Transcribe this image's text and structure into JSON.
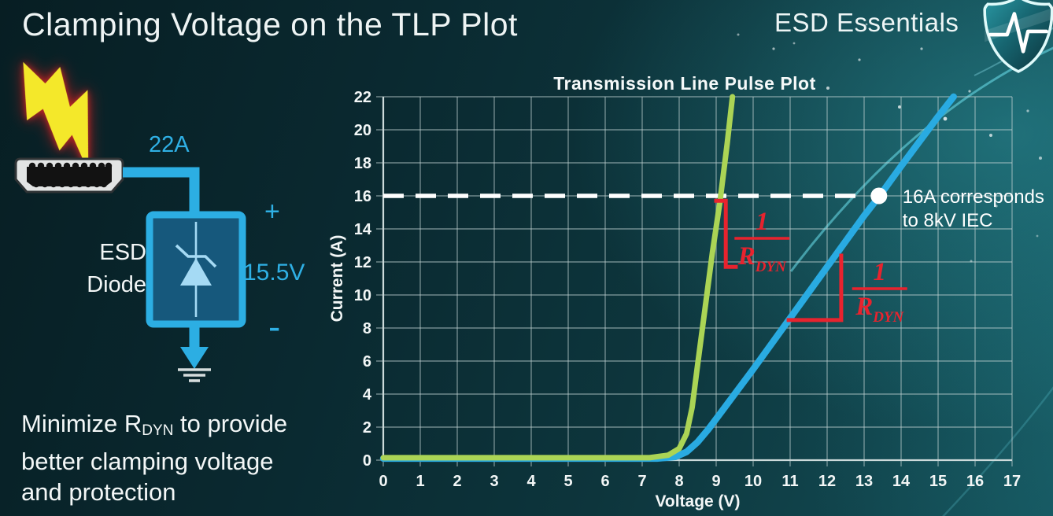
{
  "slide": {
    "title": "Clamping Voltage on the TLP Plot",
    "brand": "ESD Essentials",
    "note": {
      "line1_pre": "Minimize R",
      "line1_sub": "DYN",
      "line1_post": " to provide",
      "line2": "better clamping voltage",
      "line3": "and protection"
    }
  },
  "diagram": {
    "surge_current_label": "22A",
    "device_label_line1": "ESD",
    "device_label_line2": "Diode",
    "plus_label": "+",
    "clamp_voltage_label": "15.5V",
    "minus_label": "-",
    "icons": {
      "lightning": "lightning-bolt",
      "connector": "hdmi-port",
      "diode": "zener-diode",
      "ground": "earth-ground",
      "brand_logo": "shield-with-pulse"
    },
    "colors": {
      "wire": "#2caee3",
      "box_fill": "#16587c",
      "diode_symbol": "#a5daf4",
      "lightning": "#f4e82a",
      "lightning_glow": "#b72025"
    }
  },
  "chart_data": {
    "type": "line",
    "title": "Transmission Line Pulse Plot",
    "xlabel": "Voltage (V)",
    "ylabel": "Current (A)",
    "xlim": [
      0,
      17
    ],
    "ylim": [
      0,
      22
    ],
    "x_ticks": [
      0,
      1,
      2,
      3,
      4,
      5,
      6,
      7,
      8,
      9,
      10,
      11,
      12,
      13,
      14,
      15,
      16,
      17
    ],
    "y_ticks": [
      0,
      2,
      4,
      6,
      8,
      10,
      12,
      14,
      16,
      18,
      20,
      22
    ],
    "grid": true,
    "series": [
      {
        "name": "blue-tlp-curve",
        "color": "#29abe2",
        "width": 8.5,
        "points": [
          [
            0,
            0.1
          ],
          [
            7.4,
            0.1
          ],
          [
            7.9,
            0.2
          ],
          [
            8.2,
            0.5
          ],
          [
            8.5,
            1.1
          ],
          [
            8.8,
            1.9
          ],
          [
            9.2,
            3.1
          ],
          [
            10,
            5.5
          ],
          [
            11,
            8.6
          ],
          [
            12,
            11.7
          ],
          [
            13,
            14.8
          ],
          [
            13.42,
            16
          ],
          [
            14,
            17.8
          ],
          [
            15,
            20.8
          ],
          [
            15.42,
            22
          ]
        ]
      },
      {
        "name": "green-tlp-curve",
        "color": "#abd455",
        "width": 7,
        "points": [
          [
            0,
            0.15
          ],
          [
            7.2,
            0.15
          ],
          [
            7.7,
            0.3
          ],
          [
            8.0,
            0.7
          ],
          [
            8.2,
            1.6
          ],
          [
            8.35,
            3.2
          ],
          [
            8.5,
            5.8
          ],
          [
            8.7,
            9.2
          ],
          [
            8.9,
            12.6
          ],
          [
            9.1,
            15.6
          ],
          [
            9.3,
            19.2
          ],
          [
            9.44,
            22
          ]
        ]
      }
    ],
    "reference_line": {
      "y": 16,
      "color": "#ffffff",
      "style": "dashed"
    },
    "marker": {
      "x": 13.4,
      "y": 16,
      "color": "#ffffff",
      "label_line1": "16A corresponds",
      "label_line2": "to 8kV IEC"
    },
    "slope_annotations": [
      {
        "numerator": "1",
        "denominator": "R",
        "denominator_sub": "DYN",
        "color": "#e8232e",
        "bracket": [
          [
            9.0,
            15.7
          ],
          [
            9.26,
            15.7
          ],
          [
            9.26,
            11.7
          ],
          [
            9.53,
            11.7
          ]
        ],
        "frac_center": [
          10.24,
          13.43
        ]
      },
      {
        "numerator": "1",
        "denominator": "R",
        "denominator_sub": "DYN",
        "color": "#e8232e",
        "bracket": [
          [
            10.96,
            8.48
          ],
          [
            12.38,
            8.48
          ],
          [
            12.38,
            12.38
          ]
        ],
        "frac_center": [
          13.42,
          10.38
        ]
      }
    ]
  }
}
